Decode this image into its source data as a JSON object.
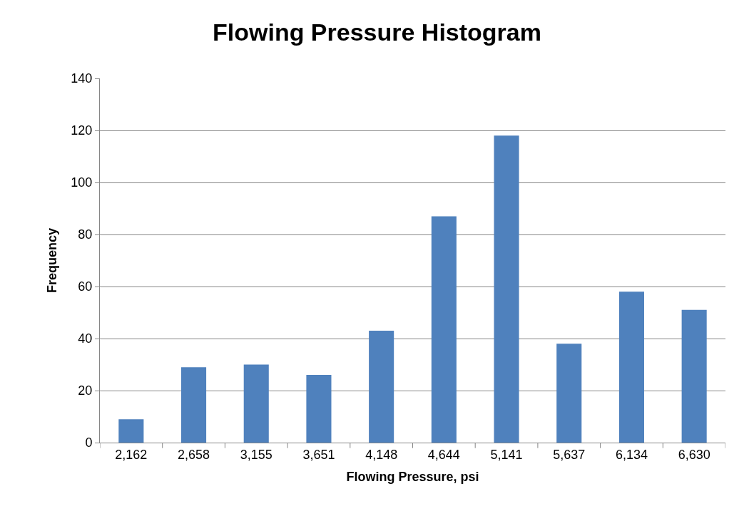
{
  "chart_data": {
    "type": "bar",
    "title": "Flowing Pressure Histogram",
    "xlabel": "Flowing Pressure, psi",
    "ylabel": "Frequency",
    "categories": [
      "2,162",
      "2,658",
      "3,155",
      "3,651",
      "4,148",
      "4,644",
      "5,141",
      "5,637",
      "6,134",
      "6,630"
    ],
    "values": [
      9,
      29,
      30,
      26,
      43,
      87,
      118,
      38,
      58,
      51
    ],
    "color": "#4f81bd",
    "ylim": [
      0,
      140
    ],
    "yticks": [
      0,
      20,
      40,
      60,
      80,
      100,
      120,
      140
    ],
    "grid": "y"
  }
}
